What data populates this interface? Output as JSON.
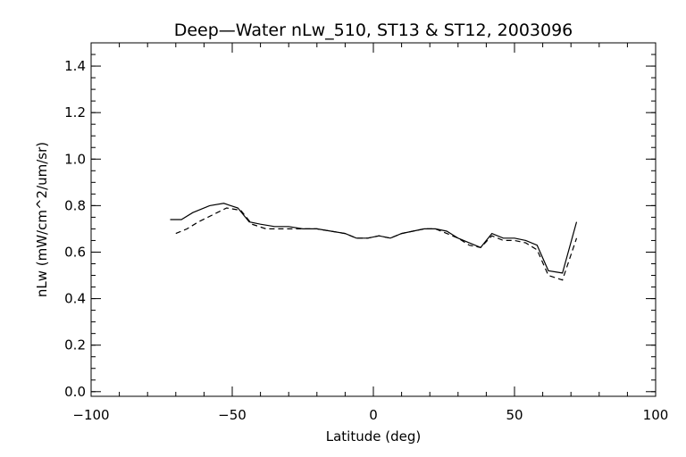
{
  "chart_data": {
    "type": "line",
    "title": "Deep—Water nLw_510, ST13 & ST12, 2003096",
    "xlabel": "Latitude (deg)",
    "ylabel": "nLw (mW/cm^2/um/sr)",
    "xlim": [
      -100,
      100
    ],
    "ylim": [
      -0.02,
      1.5
    ],
    "x_ticks": [
      -100,
      -50,
      0,
      50,
      100
    ],
    "x_tick_labels": [
      "−100",
      "−50",
      "0",
      "50",
      "100"
    ],
    "x_minor_step": 10,
    "y_ticks": [
      0.0,
      0.2,
      0.4,
      0.6,
      0.8,
      1.0,
      1.2,
      1.4
    ],
    "y_tick_labels": [
      "0.0",
      "0.2",
      "0.4",
      "0.6",
      "0.8",
      "1.0",
      "1.2",
      "1.4"
    ],
    "y_minor_step": 0.05,
    "grid": false,
    "legend": "none",
    "series": [
      {
        "style": "solid",
        "x": [
          -72,
          -68,
          -64,
          -58,
          -53,
          -48,
          -44,
          -40,
          -35,
          -30,
          -25,
          -20,
          -15,
          -10,
          -6,
          -2,
          2,
          6,
          10,
          14,
          18,
          22,
          26,
          30,
          34,
          38,
          42,
          46,
          50,
          54,
          58,
          62,
          67,
          72
        ],
        "y": [
          0.74,
          0.74,
          0.77,
          0.8,
          0.81,
          0.79,
          0.73,
          0.72,
          0.71,
          0.71,
          0.7,
          0.7,
          0.69,
          0.68,
          0.66,
          0.66,
          0.67,
          0.66,
          0.68,
          0.69,
          0.7,
          0.7,
          0.69,
          0.66,
          0.64,
          0.62,
          0.68,
          0.66,
          0.66,
          0.65,
          0.63,
          0.52,
          0.51,
          0.73
        ]
      },
      {
        "style": "dashed",
        "x": [
          -70,
          -66,
          -62,
          -57,
          -52,
          -47,
          -43,
          -38,
          -33,
          -28,
          -24,
          -20,
          -15,
          -10,
          -6,
          -2,
          2,
          6,
          10,
          14,
          18,
          22,
          26,
          30,
          34,
          38,
          42,
          46,
          50,
          54,
          58,
          62,
          67,
          72
        ],
        "y": [
          0.68,
          0.7,
          0.73,
          0.76,
          0.79,
          0.78,
          0.72,
          0.7,
          0.7,
          0.7,
          0.7,
          0.7,
          0.69,
          0.68,
          0.66,
          0.66,
          0.67,
          0.66,
          0.68,
          0.69,
          0.7,
          0.7,
          0.68,
          0.66,
          0.63,
          0.62,
          0.67,
          0.65,
          0.65,
          0.64,
          0.61,
          0.5,
          0.48,
          0.66
        ]
      }
    ]
  }
}
